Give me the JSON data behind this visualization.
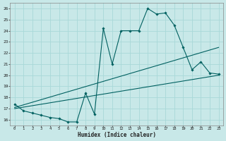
{
  "xlabel": "Humidex (Indice chaleur)",
  "bg_color": "#c8e8e8",
  "line_color": "#006060",
  "xlim": [
    -0.5,
    23.5
  ],
  "ylim": [
    15.5,
    26.5
  ],
  "xticks": [
    0,
    1,
    2,
    3,
    4,
    5,
    6,
    7,
    8,
    9,
    10,
    11,
    12,
    13,
    14,
    15,
    16,
    17,
    18,
    19,
    20,
    21,
    22,
    23
  ],
  "yticks": [
    16,
    17,
    18,
    19,
    20,
    21,
    22,
    23,
    24,
    25,
    26
  ],
  "grid_color": "#a8d8d8",
  "series_main": {
    "x": [
      0,
      1,
      2,
      3,
      4,
      5,
      6,
      7,
      8,
      9,
      10,
      11,
      12,
      13,
      14,
      15,
      16,
      17,
      18,
      19,
      20,
      21,
      22,
      23
    ],
    "y": [
      17.4,
      16.8,
      16.6,
      16.4,
      16.2,
      16.1,
      15.8,
      15.8,
      18.4,
      16.5,
      24.2,
      21.0,
      24.0,
      24.0,
      24.0,
      26.0,
      25.5,
      25.6,
      24.5,
      22.5,
      20.5,
      21.2,
      20.2,
      20.1
    ]
  },
  "series_line1": {
    "x": [
      0,
      23
    ],
    "y": [
      17.1,
      22.5
    ]
  },
  "series_line2": {
    "x": [
      0,
      23
    ],
    "y": [
      17.0,
      20.0
    ]
  }
}
